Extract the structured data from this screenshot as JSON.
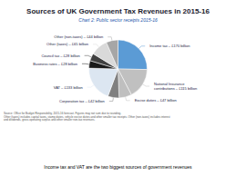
{
  "chart_data": {
    "type": "pie",
    "title": "Sources of UK Government Tax Revenues in 2015-16",
    "subtitle": "Chart 2: Public sector receipts 2015-16",
    "categories": [
      "Income tax – £170 billion",
      "National Insurance\ncontributions – £115 billion",
      "Excise duties – £47 billion",
      "Corporation tax – £42 billion",
      "VAT – £133 billion",
      "Business rates – £28 billion",
      "Council tax – £28 billion",
      "Other (taxes) – £65 billion",
      "Other (non-taxes) – £44 billion"
    ],
    "values": [
      170,
      115,
      47,
      42,
      133,
      28,
      28,
      65,
      44
    ],
    "colors": [
      "#5b9bd5",
      "#c0c0c0",
      "#bfbfbf",
      "#808080",
      "#dce6f1",
      "#1a1a1a",
      "#404040",
      "#d9d9d9",
      "#a6a6a6"
    ],
    "annotations": [
      "Source: Office for Budget Responsibility, 2015-16 forecast. Figures may not sum due to rounding.\nOther (taxes) includes capital taxes, stamp duties, vehicle excise duties and other smaller tax receipts. Other (non-taxes) includes interest\nand dividends, gross operating surplus and other smaller non-tax revenues.",
      "Income tax and VAT are the two biggest sources of government revenues"
    ]
  }
}
